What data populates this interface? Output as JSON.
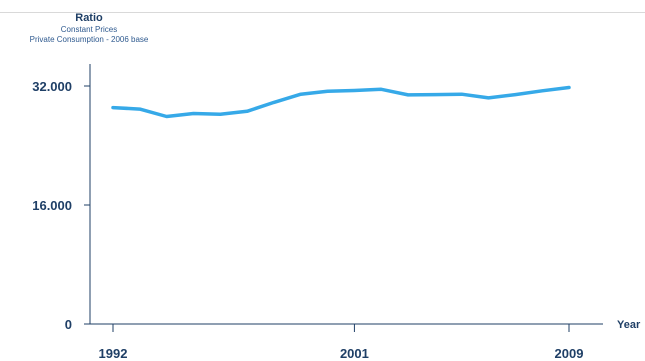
{
  "header": {
    "title": "Ratio",
    "subtitle_1": "Constant Prices",
    "subtitle_2": "Private Consumption - 2006 base"
  },
  "chart_data": {
    "type": "line",
    "ylabel": "Ratio",
    "xlabel": "Year",
    "ylim": [
      0,
      32000
    ],
    "y_ticks": [
      {
        "value": 0,
        "label": "0"
      },
      {
        "value": 16000,
        "label": "16.000"
      },
      {
        "value": 32000,
        "label": "32.000"
      }
    ],
    "x_ticks": [
      {
        "value": 1992,
        "label": "1992"
      },
      {
        "value": 2001,
        "label": "2001"
      },
      {
        "value": 2009,
        "label": "2009"
      }
    ],
    "xlim": [
      1992,
      2009
    ],
    "grid": false,
    "colors": {
      "line": "#36a9e8",
      "axis": "#1f3f66",
      "text": "#1f3f66"
    },
    "series": [
      {
        "x": [
          1992,
          1993,
          1994,
          1995,
          1996,
          1997,
          1998,
          1999,
          2000,
          2001,
          2002,
          2003,
          2004,
          2005,
          2006,
          2007,
          2008,
          2009
        ],
        "values": [
          29100,
          28900,
          27900,
          28300,
          28200,
          28600,
          29800,
          30900,
          31300,
          31400,
          31550,
          30800,
          30850,
          30900,
          30400,
          30850,
          31350,
          31800
        ]
      }
    ]
  }
}
